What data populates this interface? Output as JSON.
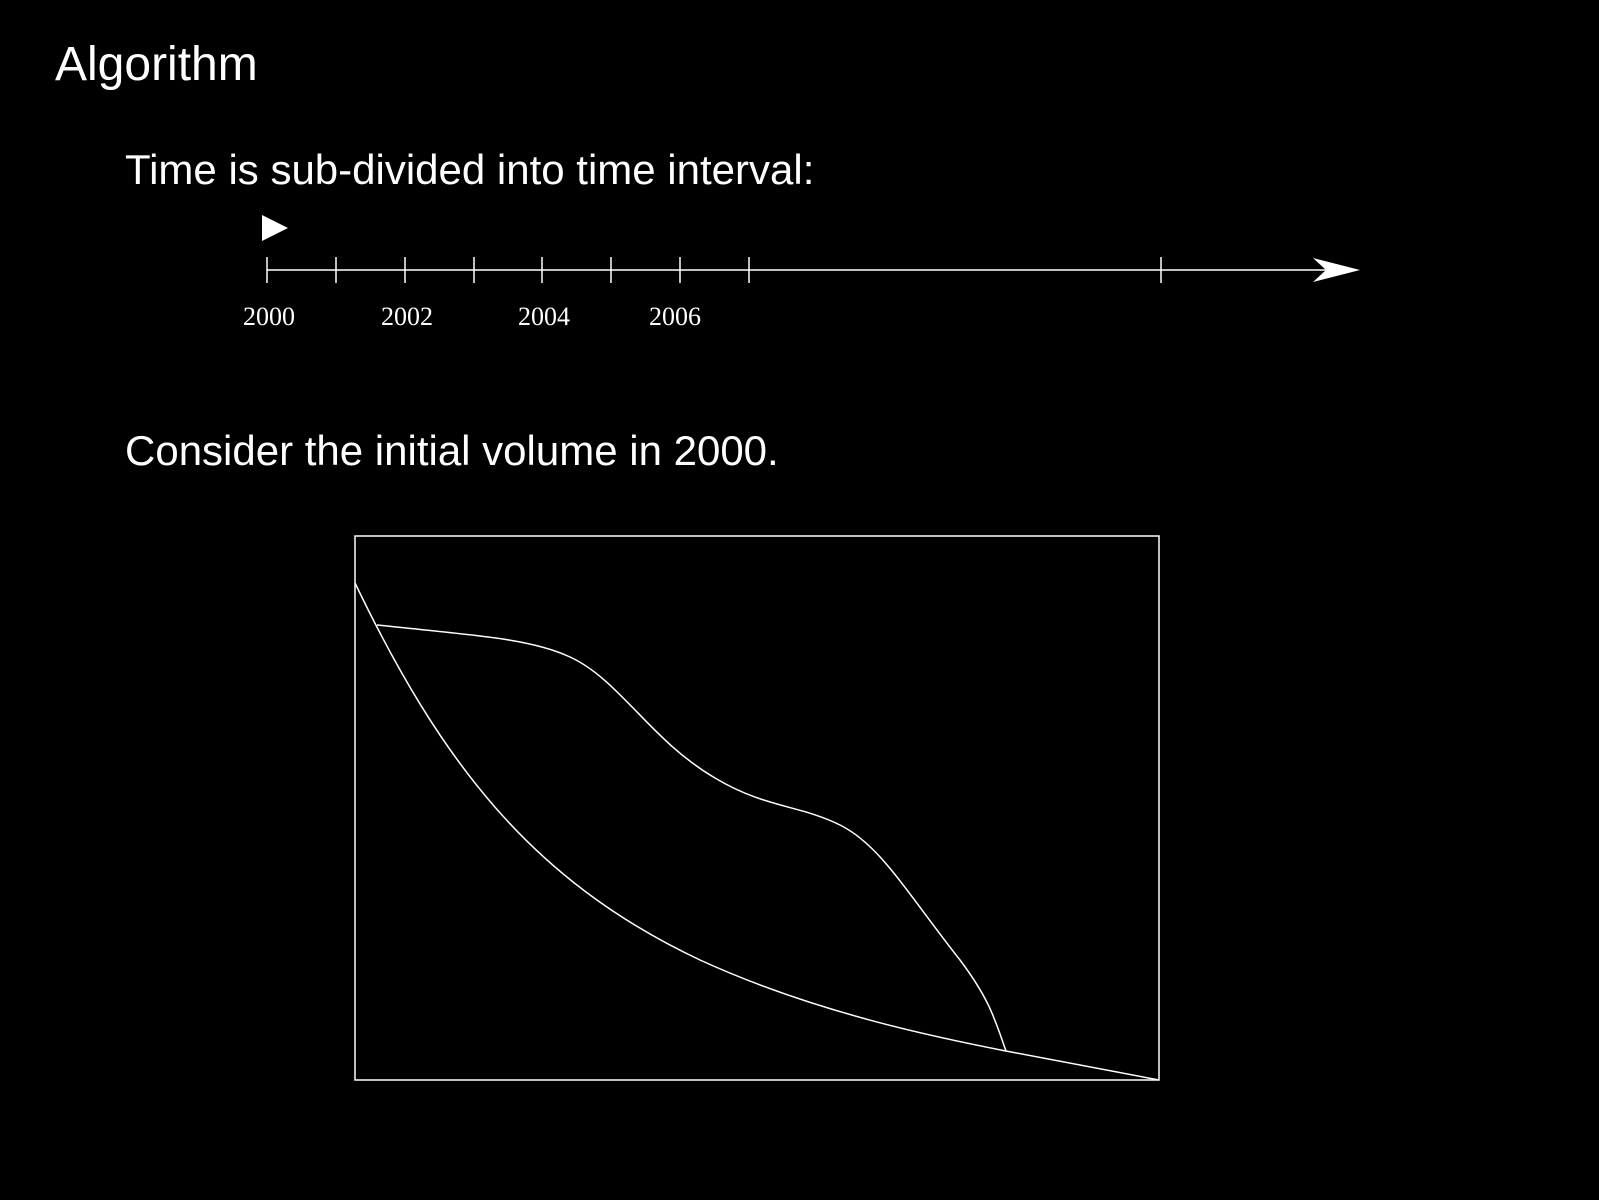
{
  "slide": {
    "title": "Algorithm",
    "line1": "Time is sub-divided into time interval:",
    "line2": "Consider the initial volume in 2000."
  },
  "timeline": {
    "tick_labels": [
      "2000",
      "2002",
      "2004",
      "2006"
    ],
    "marker_icon": "play-triangle-icon",
    "arrow_icon": "arrowhead-icon"
  },
  "colors": {
    "background": "#000000",
    "foreground": "#ffffff"
  }
}
